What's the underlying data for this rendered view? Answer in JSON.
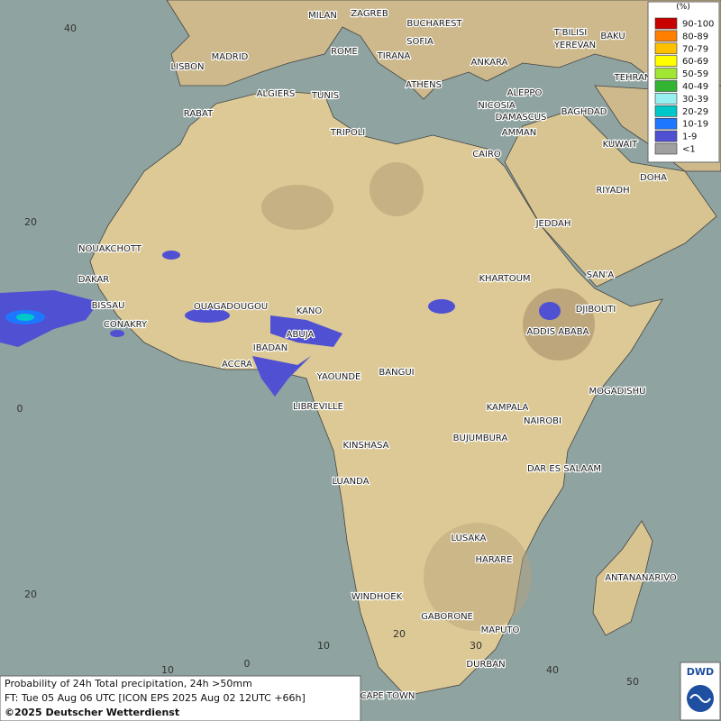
{
  "legend": {
    "title": "(%)",
    "entries": [
      {
        "label": "90-100",
        "color": "#c80000"
      },
      {
        "label": "80-89",
        "color": "#ff8000"
      },
      {
        "label": "70-79",
        "color": "#ffc000"
      },
      {
        "label": "60-69",
        "color": "#ffff00"
      },
      {
        "label": "50-59",
        "color": "#a0e632"
      },
      {
        "label": "40-49",
        "color": "#32b432"
      },
      {
        "label": "30-39",
        "color": "#96f0f0"
      },
      {
        "label": "20-29",
        "color": "#00c8c8"
      },
      {
        "label": "10-19",
        "color": "#1e78ff"
      },
      {
        "label": "1-9",
        "color": "#5050d2"
      },
      {
        "label": "<1",
        "color": "#a0a0a0"
      }
    ]
  },
  "cities": [
    "MILAN",
    "ZAGREB",
    "BUCHAREST",
    "ROME",
    "SOFIA",
    "TIRANA",
    "ANKARA",
    "T'BILISI",
    "BAKU",
    "YEREVAN",
    "LISBON",
    "MADRID",
    "ATHENS",
    "TEHRAN",
    "ALGIERS",
    "TUNIS",
    "ALEPPO",
    "NICOSIA",
    "BAGHDAD",
    "RABAT",
    "DAMASCUS",
    "AMMAN",
    "TRIPOLI",
    "KUWAIT",
    "CAIRO",
    "DOHA",
    "RIYADH",
    "JEDDAH",
    "NOUAKCHOTT",
    "SAN'A",
    "DAKAR",
    "KHARTOUM",
    "BISSAU",
    "OUAGADOUGOU",
    "KANO",
    "DJIBOUTI",
    "CONAKRY",
    "ABUJA",
    "ADDIS ABABA",
    "IBADAN",
    "ACCRA",
    "YAOUNDE",
    "BANGUI",
    "MOGADISHU",
    "LIBREVILLE",
    "KAMPALA",
    "NAIROBI",
    "BUJUMBURA",
    "KINSHASA",
    "DAR ES SALAAM",
    "LUANDA",
    "LUSAKA",
    "HARARE",
    "ANTANANARIVO",
    "WINDHOEK",
    "GABORONE",
    "MAPUTO",
    "DURBAN",
    "CAPE TOWN"
  ],
  "grid_labels": {
    "latitude": [
      "40",
      "20",
      "0",
      "20"
    ],
    "longitude": [
      "10",
      "0",
      "10",
      "20",
      "30",
      "40",
      "50"
    ]
  },
  "footer": {
    "lines": [
      "Probability of 24h Total precipitation, 24h >50mm",
      "FT: Tue 05 Aug 06 UTC [ICON EPS 2025 Aug 02 12UTC +66h]",
      "©2025 Deutscher Wetterdienst"
    ]
  },
  "logo": "DWD"
}
